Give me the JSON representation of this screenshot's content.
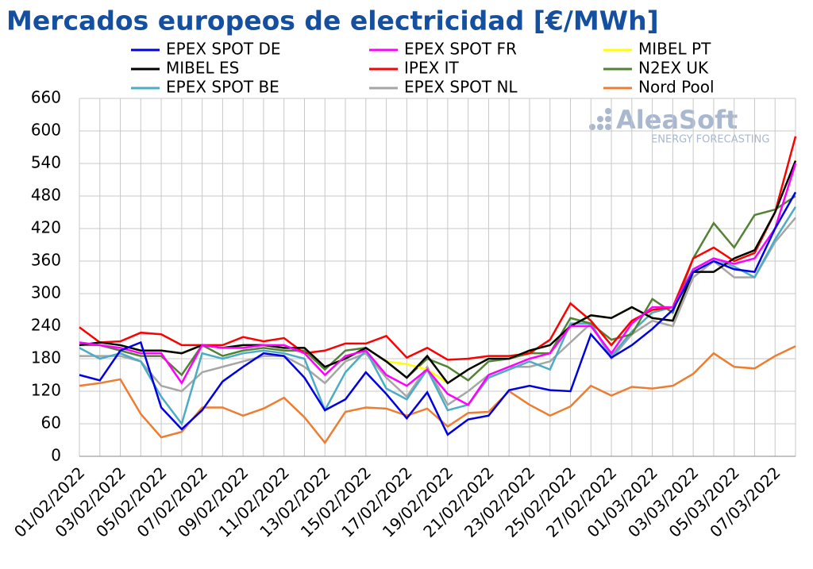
{
  "chart_data": {
    "type": "line",
    "title": "Mercados europeos de electricidad [€/MWh]",
    "watermark": {
      "name": "AleaSoft",
      "tagline": "ENERGY FORECASTING"
    },
    "categories": [
      "01/02/2022",
      null,
      "03/02/2022",
      null,
      "05/02/2022",
      null,
      "07/02/2022",
      null,
      "09/02/2022",
      null,
      "11/02/2022",
      null,
      "13/02/2022",
      null,
      "15/02/2022",
      null,
      "17/02/2022",
      null,
      "19/02/2022",
      null,
      "21/02/2022",
      null,
      "23/02/2022",
      null,
      "25/02/2022",
      null,
      "27/02/2022",
      null,
      "01/03/2022",
      null,
      "03/03/2022",
      null,
      "05/03/2022",
      null,
      "07/03/2022",
      null
    ],
    "ylim": [
      0,
      660
    ],
    "yticks": [
      0,
      60,
      120,
      180,
      240,
      300,
      360,
      420,
      480,
      540,
      600,
      660
    ],
    "grid": true,
    "series": [
      {
        "name": "EPEX SPOT DE",
        "color": "#0000e0",
        "values": [
          150,
          140,
          195,
          210,
          90,
          50,
          85,
          138,
          165,
          190,
          185,
          145,
          85,
          105,
          155,
          115,
          70,
          118,
          40,
          68,
          75,
          122,
          130,
          122,
          120,
          225,
          182,
          205,
          235,
          270,
          340,
          360,
          345,
          340,
          420,
          487
        ]
      },
      {
        "name": "EPEX SPOT FR",
        "color": "#ff00ff",
        "values": [
          210,
          205,
          200,
          190,
          190,
          135,
          205,
          200,
          200,
          205,
          205,
          190,
          150,
          185,
          195,
          150,
          130,
          160,
          115,
          95,
          150,
          165,
          180,
          190,
          240,
          240,
          190,
          245,
          275,
          275,
          345,
          365,
          355,
          365,
          420,
          540
        ]
      },
      {
        "name": "MIBEL PT",
        "color": "#ffff00",
        "values": [
          205,
          210,
          205,
          195,
          195,
          190,
          205,
          200,
          205,
          205,
          200,
          200,
          165,
          180,
          200,
          175,
          170,
          160,
          135,
          160,
          180,
          180,
          195,
          205,
          240,
          260,
          255,
          275,
          255,
          250,
          340,
          340,
          365,
          380,
          450,
          545
        ]
      },
      {
        "name": "MIBEL ES",
        "color": "#000000",
        "values": [
          205,
          210,
          205,
          195,
          195,
          190,
          205,
          200,
          205,
          205,
          200,
          200,
          165,
          180,
          200,
          175,
          145,
          185,
          135,
          160,
          180,
          180,
          195,
          205,
          240,
          260,
          255,
          275,
          255,
          250,
          340,
          340,
          365,
          380,
          450,
          545
        ]
      },
      {
        "name": "IPEX IT",
        "color": "#ff0000",
        "values": [
          238,
          210,
          212,
          228,
          225,
          205,
          205,
          205,
          220,
          212,
          218,
          190,
          195,
          208,
          208,
          222,
          182,
          200,
          178,
          180,
          185,
          185,
          190,
          215,
          282,
          250,
          205,
          250,
          270,
          275,
          365,
          385,
          360,
          375,
          450,
          590
        ]
      },
      {
        "name": "N2EX UK",
        "color": "#548235",
        "values": [
          205,
          205,
          195,
          185,
          185,
          150,
          205,
          185,
          195,
          200,
          195,
          195,
          160,
          195,
          200,
          175,
          145,
          180,
          165,
          140,
          175,
          180,
          190,
          190,
          255,
          245,
          215,
          225,
          290,
          265,
          365,
          430,
          385,
          445,
          455,
          480
        ]
      },
      {
        "name": "EPEX SPOT BE",
        "color": "#4bacc6",
        "values": [
          200,
          180,
          190,
          175,
          110,
          60,
          190,
          180,
          190,
          195,
          190,
          180,
          85,
          155,
          195,
          125,
          105,
          160,
          85,
          95,
          145,
          160,
          175,
          160,
          245,
          245,
          185,
          230,
          265,
          275,
          345,
          365,
          350,
          330,
          400,
          460
        ]
      },
      {
        "name": "EPEX SPOT NL",
        "color": "#a6a6a6",
        "values": [
          185,
          185,
          185,
          175,
          130,
          120,
          155,
          165,
          175,
          185,
          185,
          165,
          135,
          175,
          190,
          145,
          110,
          165,
          95,
          120,
          150,
          165,
          165,
          175,
          210,
          245,
          180,
          225,
          250,
          240,
          330,
          360,
          330,
          330,
          395,
          440
        ]
      },
      {
        "name": "Nord Pool",
        "color": "#ed7d31",
        "values": [
          130,
          135,
          142,
          78,
          35,
          45,
          90,
          90,
          75,
          88,
          108,
          72,
          25,
          82,
          90,
          88,
          75,
          88,
          55,
          80,
          82,
          120,
          95,
          75,
          92,
          130,
          112,
          128,
          125,
          130,
          152,
          190,
          165,
          162,
          185,
          203
        ]
      }
    ]
  }
}
